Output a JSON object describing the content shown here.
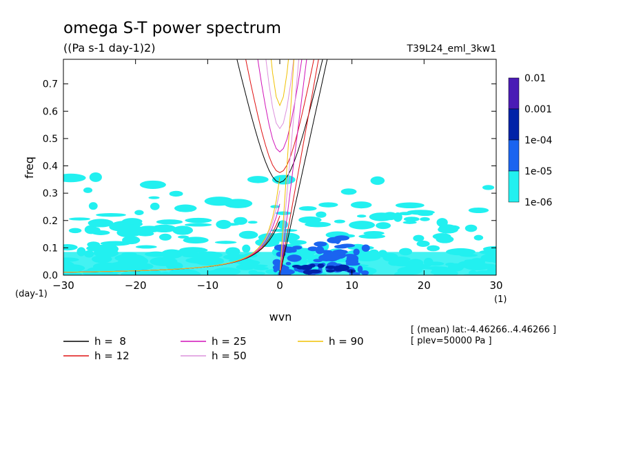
{
  "chart_data": {
    "type": "heatmap",
    "title": "omega S-T power spectrum",
    "subtitle": "((Pa s-1 day-1)2)",
    "run_label": "T39L24_eml_3kw1",
    "xlabel": "wvn",
    "ylabel": "freq",
    "x_unit": "(1)",
    "y_unit": "(day-1)",
    "xlim": [
      -30,
      30
    ],
    "ylim": [
      0,
      0.79
    ],
    "x_ticks": [
      "-30",
      "-20",
      "-10",
      "0",
      "10",
      "20",
      "30"
    ],
    "y_ticks": [
      "0.0",
      "0.1",
      "0.2",
      "0.3",
      "0.4",
      "0.5",
      "0.6",
      "0.7"
    ],
    "colorbar": {
      "levels": [
        "0.01",
        "0.001",
        "1e-04",
        "1e-05",
        "1e-06"
      ],
      "colors": [
        "#4a1bb5",
        "#0022a8",
        "#1a64f0",
        "#22f0f0"
      ]
    },
    "series": [
      {
        "name": "h =  8",
        "h": 8,
        "color": "#000000"
      },
      {
        "name": "h = 12",
        "h": 12,
        "color": "#e01010"
      },
      {
        "name": "h = 25",
        "h": 25,
        "color": "#d010b8"
      },
      {
        "name": "h = 50",
        "h": 50,
        "color": "#dc90dc"
      },
      {
        "name": "h = 90",
        "h": 90,
        "color": "#f0c000"
      }
    ],
    "info_lines": [
      "[ (mean) lat:-4.46266..4.46266 ]",
      "[ plev=50000 Pa ]"
    ],
    "grid": false,
    "legend_position": "bottom"
  }
}
